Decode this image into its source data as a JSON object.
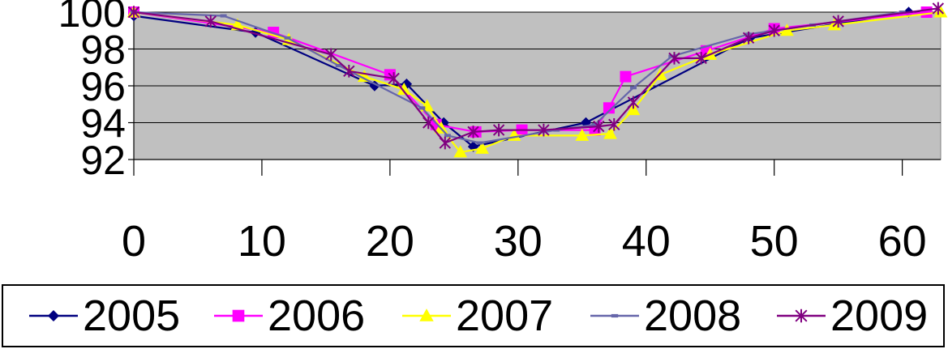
{
  "chart_data": {
    "type": "line",
    "title": "",
    "xlabel": "",
    "ylabel": "",
    "xlim": [
      0,
      63
    ],
    "ylim": [
      92,
      100
    ],
    "x_ticks": [
      0,
      10,
      20,
      30,
      40,
      50,
      60
    ],
    "y_ticks": [
      92,
      94,
      96,
      98,
      100
    ],
    "grid": true,
    "plot_background": "#c0c0c0",
    "legend_position": "bottom",
    "series": [
      {
        "name": "2005",
        "color": "#000080",
        "marker": "diamond",
        "points": [
          [
            0,
            99.8
          ],
          [
            9.5,
            98.9
          ],
          [
            18.8,
            96.0
          ],
          [
            21.3,
            96.1
          ],
          [
            24.2,
            94.0
          ],
          [
            26.5,
            92.7
          ],
          [
            35.3,
            94.0
          ],
          [
            48.1,
            98.6
          ],
          [
            60.5,
            100.0
          ]
        ]
      },
      {
        "name": "2006",
        "color": "#ff00ff",
        "marker": "square",
        "points": [
          [
            0,
            100.0
          ],
          [
            10.9,
            98.9
          ],
          [
            20.0,
            96.6
          ],
          [
            23.6,
            93.9
          ],
          [
            26.7,
            93.5
          ],
          [
            30.3,
            93.6
          ],
          [
            36.0,
            93.6
          ],
          [
            37.1,
            94.8
          ],
          [
            38.4,
            96.5
          ],
          [
            44.7,
            97.9
          ],
          [
            50.0,
            99.1
          ],
          [
            61.9,
            100.0
          ]
        ]
      },
      {
        "name": "2007",
        "color": "#ffff00",
        "marker": "triangle",
        "points": [
          [
            0,
            100.0
          ],
          [
            8.1,
            99.3
          ],
          [
            12.1,
            98.5
          ],
          [
            18.0,
            96.5
          ],
          [
            21.1,
            95.8
          ],
          [
            22.9,
            94.9
          ],
          [
            24.0,
            93.7
          ],
          [
            25.5,
            92.4
          ],
          [
            27.2,
            92.6
          ],
          [
            29.7,
            93.3
          ],
          [
            35.0,
            93.3
          ],
          [
            37.2,
            93.4
          ],
          [
            39.0,
            94.7
          ],
          [
            41.1,
            96.6
          ],
          [
            45.0,
            97.7
          ],
          [
            51.0,
            99.0
          ],
          [
            54.7,
            99.3
          ],
          [
            63.0,
            100.0
          ]
        ]
      },
      {
        "name": "2008",
        "color": "#6666aa",
        "marker": "dash",
        "points": [
          [
            0,
            100.0
          ],
          [
            7.0,
            99.8
          ],
          [
            12.0,
            98.6
          ],
          [
            16.0,
            97.1
          ],
          [
            22.5,
            94.8
          ],
          [
            24.5,
            93.3
          ],
          [
            27.0,
            92.9
          ],
          [
            33.0,
            93.6
          ],
          [
            36.0,
            93.9
          ],
          [
            39.0,
            95.9
          ],
          [
            42.0,
            97.6
          ],
          [
            48.0,
            98.8
          ],
          [
            53.0,
            99.3
          ],
          [
            60.0,
            100.0
          ]
        ]
      },
      {
        "name": "2009",
        "color": "#800080",
        "marker": "asterisk",
        "points": [
          [
            0,
            100.0
          ],
          [
            6.0,
            99.5
          ],
          [
            15.4,
            97.7
          ],
          [
            16.8,
            96.8
          ],
          [
            20.3,
            96.4
          ],
          [
            23.0,
            94.0
          ],
          [
            24.3,
            92.9
          ],
          [
            26.5,
            93.5
          ],
          [
            28.5,
            93.6
          ],
          [
            32.0,
            93.6
          ],
          [
            36.3,
            93.8
          ],
          [
            37.5,
            93.9
          ],
          [
            39.0,
            95.1
          ],
          [
            42.2,
            97.5
          ],
          [
            44.3,
            97.5
          ],
          [
            48.0,
            98.6
          ],
          [
            50.0,
            99.0
          ],
          [
            55.0,
            99.5
          ],
          [
            62.8,
            100.2
          ]
        ]
      }
    ]
  }
}
